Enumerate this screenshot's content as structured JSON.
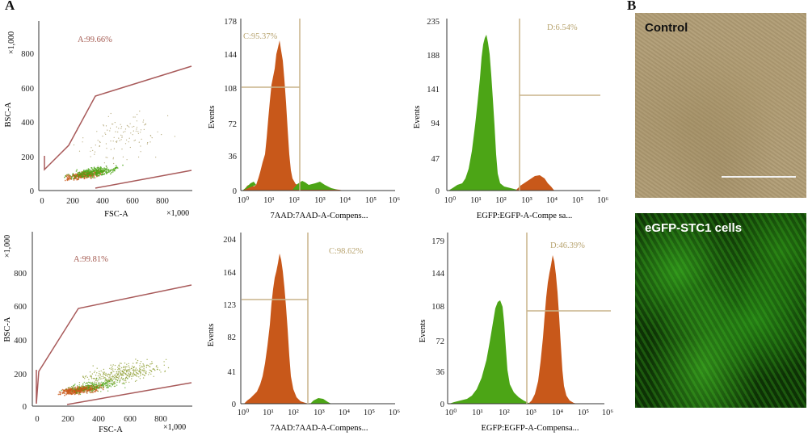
{
  "figure": {
    "panel_a_label": "A",
    "panel_b_label": "B"
  },
  "scatter_plots": [
    {
      "id": "control-scatter",
      "gate_label": "A:99.66%",
      "x_label": "FSC-A",
      "y_label": "BSC-A",
      "x_mult": "×1,000",
      "y_mult": "×1,000",
      "x_ticks": [
        "0",
        "200",
        "400",
        "600",
        "800"
      ],
      "y_ticks": [
        "0",
        "200",
        "400",
        "600",
        "800"
      ]
    },
    {
      "id": "stc1-scatter",
      "gate_label": "A:99.81%",
      "x_label": "FSC-A",
      "y_label": "BSC-A",
      "x_mult": "×1,000",
      "y_mult": "×1,000",
      "x_ticks": [
        "0",
        "200",
        "400",
        "600",
        "800"
      ],
      "y_ticks": [
        "0",
        "200",
        "400",
        "600",
        "800"
      ]
    }
  ],
  "histograms": [
    {
      "id": "control-7aad",
      "gate_label": "C:95.37%",
      "x_label": "7AAD:7AAD-A-Compens...",
      "y_label": "Events",
      "y_ticks": [
        "0",
        "36",
        "72",
        "108",
        "144",
        "178"
      ],
      "x_ticks": [
        "10⁰",
        "10¹",
        "10²",
        "10³",
        "10⁴",
        "10⁵",
        "10⁶"
      ]
    },
    {
      "id": "control-egfp",
      "gate_label": "D:6.54%",
      "x_label": "EGFP:EGFP-A-Compe sa...",
      "y_label": "Events",
      "y_ticks": [
        "0",
        "47",
        "94",
        "141",
        "188",
        "235"
      ],
      "x_ticks": [
        "10⁰",
        "10¹",
        "10²",
        "10³",
        "10⁴",
        "10⁵",
        "10⁶"
      ]
    },
    {
      "id": "stc1-7aad",
      "gate_label": "C:98.62%",
      "x_label": "7AAD:7AAD-A-Compens...",
      "y_label": "Events",
      "y_ticks": [
        "0",
        "41",
        "82",
        "123",
        "164",
        "204"
      ],
      "x_ticks": [
        "10⁰",
        "10¹",
        "10²",
        "10³",
        "10⁴",
        "10⁵",
        "10⁶"
      ]
    },
    {
      "id": "stc1-egfp",
      "gate_label": "D:46.39%",
      "x_label": "EGFP:EGFP-A-Compensa...",
      "y_label": "Events",
      "y_ticks": [
        "0",
        "36",
        "72",
        "108",
        "144",
        "179"
      ],
      "x_ticks": [
        "10⁰",
        "10¹",
        "10²",
        "10³",
        "10⁴",
        "10⁵",
        "10⁶"
      ]
    }
  ],
  "micrographs": {
    "control_label": "Control",
    "stc1_label": "eGFP-STC1 cells"
  },
  "colors": {
    "orange": "#c8581a",
    "green": "#4ca516",
    "gate": "#a85a5a",
    "quad": "#c8b48a"
  }
}
